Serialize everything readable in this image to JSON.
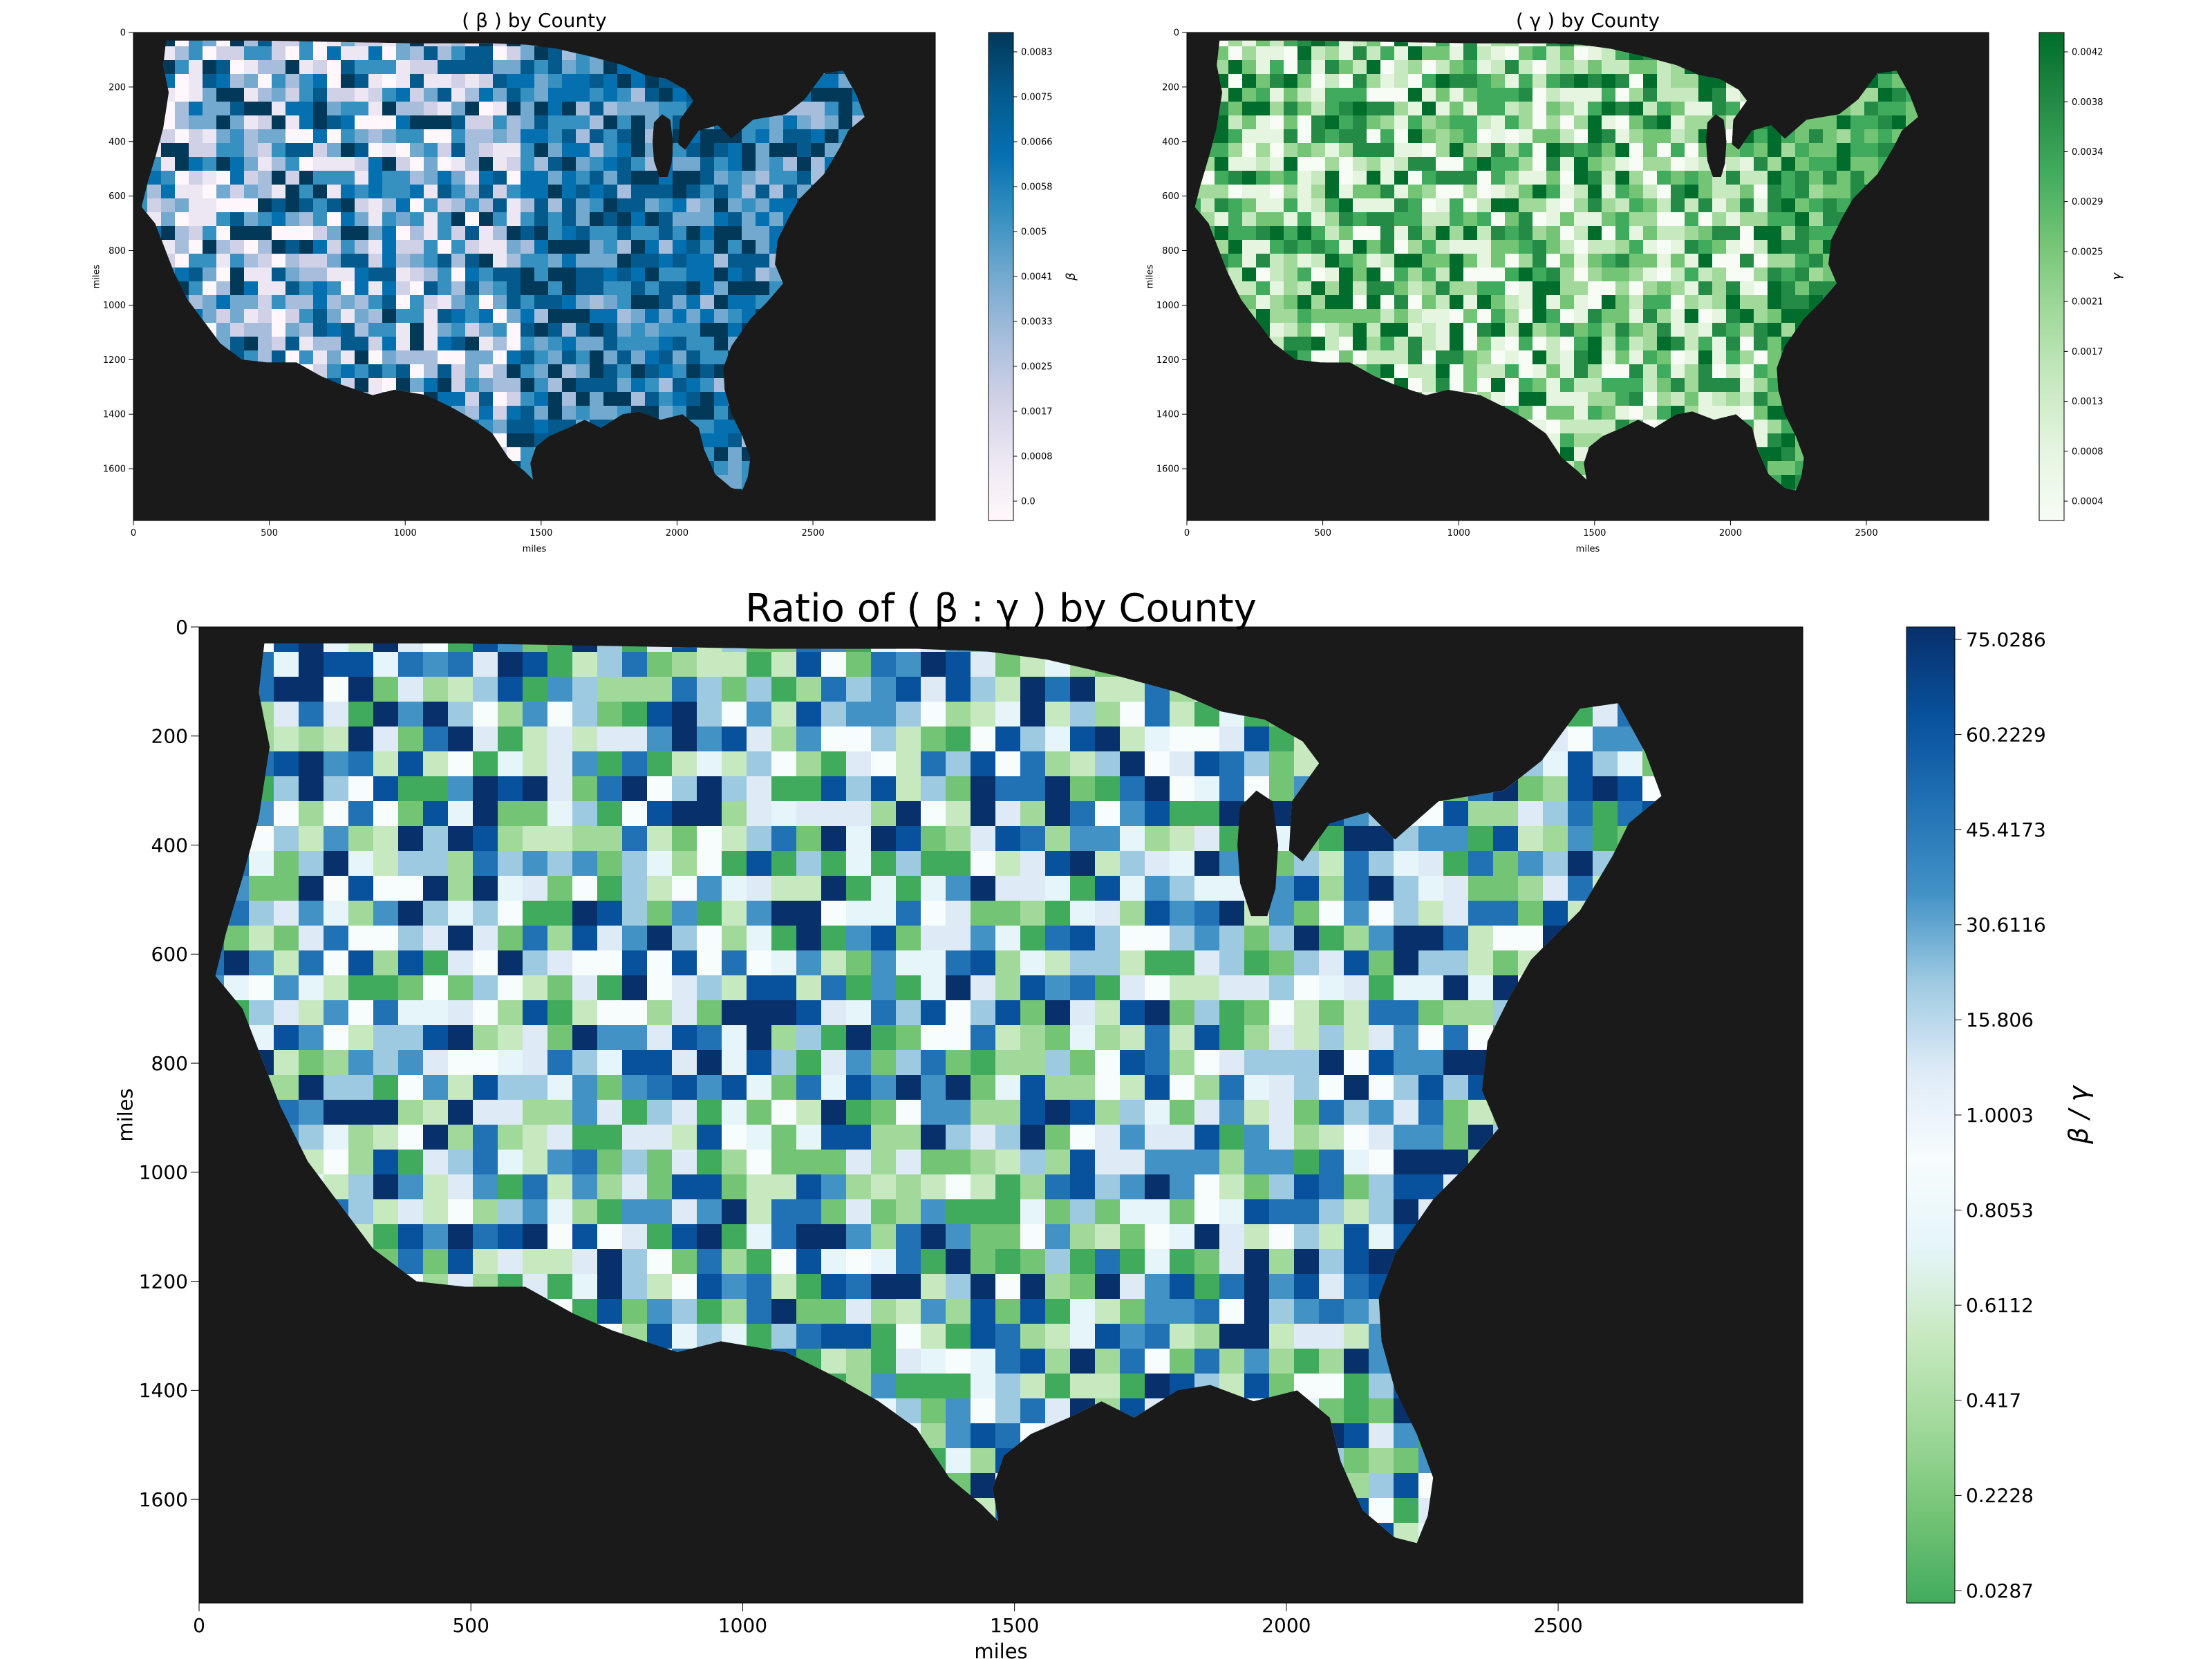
{
  "colors": {
    "background": "#1a1a1a",
    "land_outline": "#1a1a1a",
    "beta_scale": [
      "#fff7fb",
      "#ece7f2",
      "#d0d1e6",
      "#a6bddb",
      "#74a9cf",
      "#3690c0",
      "#0570b0",
      "#045a8d",
      "#023858"
    ],
    "gamma_scale": [
      "#f7fcf5",
      "#e5f5e0",
      "#c7e9c0",
      "#a1d99b",
      "#74c476",
      "#41ab5d",
      "#238b45",
      "#006d2c"
    ],
    "ratio_scale": [
      "#41ab5d",
      "#74c476",
      "#a1d99b",
      "#c7e9c0",
      "#e5f5f9",
      "#f7fcfd",
      "#deebf7",
      "#9ecae1",
      "#4292c6",
      "#2171b5",
      "#08519c",
      "#08306b"
    ]
  },
  "chart_data": [
    {
      "type": "heatmap",
      "title": "( β ) by County",
      "xlabel": "miles",
      "ylabel": "miles",
      "xlim": [
        0,
        2950
      ],
      "ylim": [
        1790,
        0
      ],
      "xticks": [
        0,
        500,
        1000,
        1500,
        2000,
        2500
      ],
      "yticks": [
        0,
        200,
        400,
        600,
        800,
        1000,
        1200,
        1400,
        1600
      ],
      "colorbar": {
        "label": "β",
        "ticks": [
          "0.0",
          "0.0008",
          "0.0017",
          "0.0025",
          "0.0033",
          "0.0041",
          "0.005",
          "0.0058",
          "0.0066",
          "0.0075",
          "0.0083"
        ]
      }
    },
    {
      "type": "heatmap",
      "title": "( γ ) by County",
      "xlabel": "miles",
      "ylabel": "miles",
      "xlim": [
        0,
        2950
      ],
      "ylim": [
        1790,
        0
      ],
      "xticks": [
        0,
        500,
        1000,
        1500,
        2000,
        2500
      ],
      "yticks": [
        0,
        200,
        400,
        600,
        800,
        1000,
        1200,
        1400,
        1600
      ],
      "colorbar": {
        "label": "γ",
        "ticks": [
          "0.0004",
          "0.0008",
          "0.0013",
          "0.0017",
          "0.0021",
          "0.0025",
          "0.0029",
          "0.0034",
          "0.0038",
          "0.0042"
        ]
      }
    },
    {
      "type": "heatmap",
      "title": "Ratio of ( β : γ ) by County",
      "xlabel": "miles",
      "ylabel": "miles",
      "xlim": [
        0,
        2950
      ],
      "ylim": [
        1790,
        0
      ],
      "xticks": [
        0,
        500,
        1000,
        1500,
        2000,
        2500
      ],
      "yticks": [
        0,
        200,
        400,
        600,
        800,
        1000,
        1200,
        1400,
        1600
      ],
      "colorbar": {
        "label": "β / γ",
        "ticks": [
          "0.0287",
          "0.2228",
          "0.417",
          "0.6112",
          "0.8053",
          "1.0003",
          "15.806",
          "30.6116",
          "45.4173",
          "60.2229",
          "75.0286"
        ]
      }
    }
  ]
}
